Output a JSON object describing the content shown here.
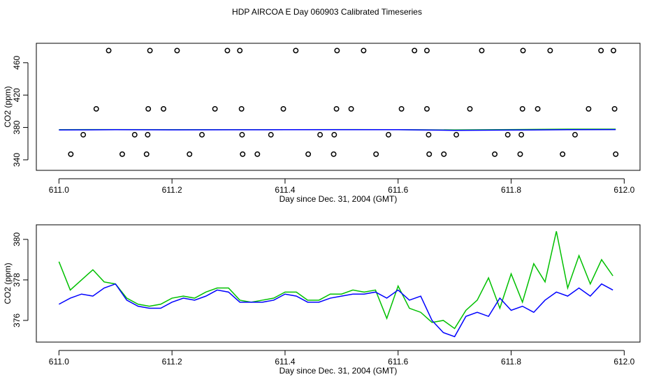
{
  "chart_data": [
    {
      "type": "line",
      "title": "HDP AIRCOA E  Day 060903  Calibrated Timeseries",
      "x_label": "Day since Dec. 31, 2004 (GMT)",
      "y_label": "CO2 (ppm)",
      "xlim": [
        610.96,
        612.028
      ],
      "ylim": [
        327,
        484
      ],
      "xticks": [
        {
          "value": 611,
          "label": "611.0"
        },
        611.2,
        611.4,
        611.6,
        611.8,
        {
          "value": 612,
          "label": "612.0"
        }
      ],
      "yticks": [
        340,
        380,
        420,
        460
      ],
      "x": [
        611.0,
        611.1,
        611.2,
        611.3,
        611.4,
        611.5,
        611.6,
        611.7,
        611.8,
        611.9,
        611.985
      ],
      "series": [
        {
          "color": "#00c000",
          "values": [
            377.3,
            377.4,
            377.2,
            377.3,
            377.3,
            377.4,
            377.3,
            376.9,
            377.4,
            377.9,
            377.9
          ]
        },
        {
          "color": "#0000ff",
          "values": [
            376.9,
            377.2,
            377.0,
            377.1,
            377.2,
            377.2,
            377.3,
            376.4,
            376.8,
            377.2,
            377.4
          ]
        }
      ],
      "markers": {
        "x": [
          611.088,
          611.161,
          611.209,
          611.298,
          611.32,
          611.419,
          611.492,
          611.539,
          611.629,
          611.651,
          611.748,
          611.821,
          611.869,
          611.959,
          611.981,
          611.066,
          611.158,
          611.185,
          611.276,
          611.323,
          611.397,
          611.491,
          611.517,
          611.606,
          611.651,
          611.727,
          611.82,
          611.847,
          611.937,
          611.983,
          611.043,
          611.134,
          611.157,
          611.253,
          611.324,
          611.375,
          611.462,
          611.487,
          611.583,
          611.654,
          611.703,
          611.794,
          611.818,
          611.913,
          611.021,
          611.112,
          611.155,
          611.231,
          611.325,
          611.351,
          611.441,
          611.486,
          611.561,
          611.655,
          611.681,
          611.771,
          611.816,
          611.891,
          611.985
        ],
        "y": [
          475,
          475,
          475,
          475,
          475,
          475,
          475,
          475,
          475,
          475,
          475,
          475,
          475,
          475,
          475,
          403,
          403,
          403,
          403,
          403,
          403,
          403,
          403,
          403,
          403,
          403,
          403,
          403,
          403,
          403,
          371,
          371,
          371,
          371,
          371,
          371,
          371,
          371,
          371,
          371,
          371,
          371,
          371,
          371,
          347,
          347,
          347,
          347,
          347,
          347,
          347,
          347,
          347,
          347,
          347,
          347,
          347,
          347,
          347
        ]
      }
    },
    {
      "type": "line",
      "x_label": "Day since Dec. 31, 2004 (GMT)",
      "y_label": "CO2 (ppm)",
      "xlim": [
        610.96,
        612.028
      ],
      "ylim": [
        374.93,
        380.72
      ],
      "xticks": [
        {
          "value": 611,
          "label": "611.0"
        },
        611.2,
        611.4,
        611.6,
        611.8,
        {
          "value": 612,
          "label": "612.0"
        }
      ],
      "yticks": [
        376,
        378,
        380
      ],
      "x": [
        611.0,
        611.02,
        611.04,
        611.06,
        611.08,
        611.1,
        611.12,
        611.14,
        611.16,
        611.18,
        611.2,
        611.22,
        611.24,
        611.26,
        611.28,
        611.3,
        611.32,
        611.34,
        611.36,
        611.38,
        611.4,
        611.42,
        611.44,
        611.46,
        611.48,
        611.5,
        611.52,
        611.54,
        611.56,
        611.58,
        611.6,
        611.62,
        611.64,
        611.66,
        611.68,
        611.7,
        611.72,
        611.74,
        611.76,
        611.78,
        611.8,
        611.82,
        611.84,
        611.86,
        611.88,
        611.9,
        611.92,
        611.94,
        611.96,
        611.98
      ],
      "series": [
        {
          "color": "#00c000",
          "values": [
            378.9,
            377.5,
            378.0,
            378.5,
            377.9,
            377.8,
            377.1,
            376.8,
            376.7,
            376.8,
            377.1,
            377.2,
            377.1,
            377.4,
            377.6,
            377.6,
            377.0,
            376.9,
            377.0,
            377.1,
            377.4,
            377.4,
            377.0,
            377.0,
            377.3,
            377.3,
            377.5,
            377.4,
            377.5,
            376.1,
            377.7,
            376.6,
            376.4,
            375.9,
            376.0,
            375.6,
            376.5,
            377.0,
            378.1,
            376.6,
            378.3,
            376.9,
            378.8,
            377.9,
            380.4,
            377.6,
            379.2,
            377.8,
            379.0,
            378.2
          ]
        },
        {
          "color": "#0000ff",
          "values": [
            376.8,
            377.1,
            377.3,
            377.2,
            377.6,
            377.8,
            377.0,
            376.7,
            376.6,
            376.6,
            376.9,
            377.1,
            377.0,
            377.2,
            377.5,
            377.4,
            376.9,
            376.9,
            376.9,
            377.0,
            377.3,
            377.2,
            376.9,
            376.9,
            377.1,
            377.2,
            377.3,
            377.3,
            377.4,
            377.1,
            377.5,
            377.0,
            377.2,
            376.0,
            375.4,
            375.2,
            376.2,
            376.4,
            376.2,
            377.1,
            376.5,
            376.7,
            376.4,
            377.0,
            377.4,
            377.2,
            377.6,
            377.2,
            377.8,
            377.5
          ]
        }
      ]
    }
  ]
}
